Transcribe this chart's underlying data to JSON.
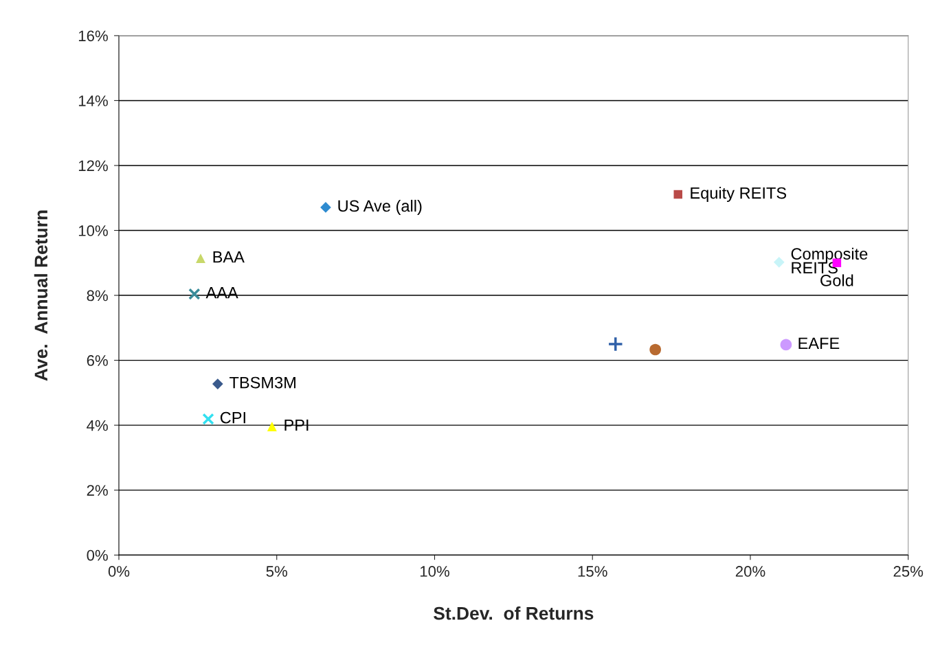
{
  "chart_data": {
    "type": "scatter",
    "xlabel": "St.Dev.  of Returns",
    "ylabel": "Ave.  Annual Return",
    "xlim": [
      0,
      25
    ],
    "ylim": [
      0,
      16
    ],
    "xticks": [
      {
        "value": 0,
        "label": "0%"
      },
      {
        "value": 5,
        "label": "5%"
      },
      {
        "value": 10,
        "label": "10%"
      },
      {
        "value": 15,
        "label": "15%"
      },
      {
        "value": 20,
        "label": "20%"
      },
      {
        "value": 25,
        "label": "25%"
      }
    ],
    "yticks": [
      {
        "value": 0,
        "label": "0%"
      },
      {
        "value": 2,
        "label": "2%"
      },
      {
        "value": 4,
        "label": "4%"
      },
      {
        "value": 6,
        "label": "6%"
      },
      {
        "value": 8,
        "label": "8%"
      },
      {
        "value": 10,
        "label": "10%"
      },
      {
        "value": 12,
        "label": "12%"
      },
      {
        "value": 14,
        "label": "14%"
      },
      {
        "value": 16,
        "label": "16%"
      }
    ],
    "grid": "y",
    "series": [
      {
        "name": "US Ave (all)",
        "color": "#2e8bd0",
        "marker": "diamond",
        "x": [
          6.55
        ],
        "values": [
          10.71
        ]
      },
      {
        "name": "Equity REITS",
        "color": "#b94a48",
        "marker": "square",
        "x": [
          17.71
        ],
        "values": [
          11.11
        ]
      },
      {
        "name": "BAA",
        "color": "#c8d86a",
        "marker": "triangle",
        "x": [
          2.59
        ],
        "values": [
          9.14
        ]
      },
      {
        "name": "AAA",
        "color": "#3a8c9a",
        "marker": "cross",
        "x": [
          2.39
        ],
        "values": [
          8.04
        ]
      },
      {
        "name": "Composite\nREITS",
        "color": "#c8f4f8",
        "marker": "diamond",
        "x": [
          20.91
        ],
        "values": [
          9.02
        ]
      },
      {
        "name": "Gold",
        "color": "#ff00ff",
        "marker": "square",
        "x": [
          22.74
        ],
        "values": [
          9.0
        ]
      },
      {
        "color": "#3060a8",
        "marker": "plus",
        "x": [
          15.73
        ],
        "values": [
          6.5
        ]
      },
      {
        "color": "#b86a30",
        "marker": "circle",
        "x": [
          16.99
        ],
        "values": [
          6.33
        ]
      },
      {
        "name": "EAFE",
        "color": "#cc99ff",
        "marker": "circle",
        "x": [
          21.13
        ],
        "values": [
          6.48
        ]
      },
      {
        "name": "TBSM3M",
        "color": "#3a5a8c",
        "marker": "diamond",
        "x": [
          3.13
        ],
        "values": [
          5.27
        ]
      },
      {
        "name": "CPI",
        "color": "#33e0f0",
        "marker": "cross",
        "x": [
          2.83
        ],
        "values": [
          4.19
        ]
      },
      {
        "name": "PPI",
        "color": "#ffff00",
        "marker": "triangle",
        "x": [
          4.85
        ],
        "values": [
          3.96
        ]
      }
    ]
  }
}
